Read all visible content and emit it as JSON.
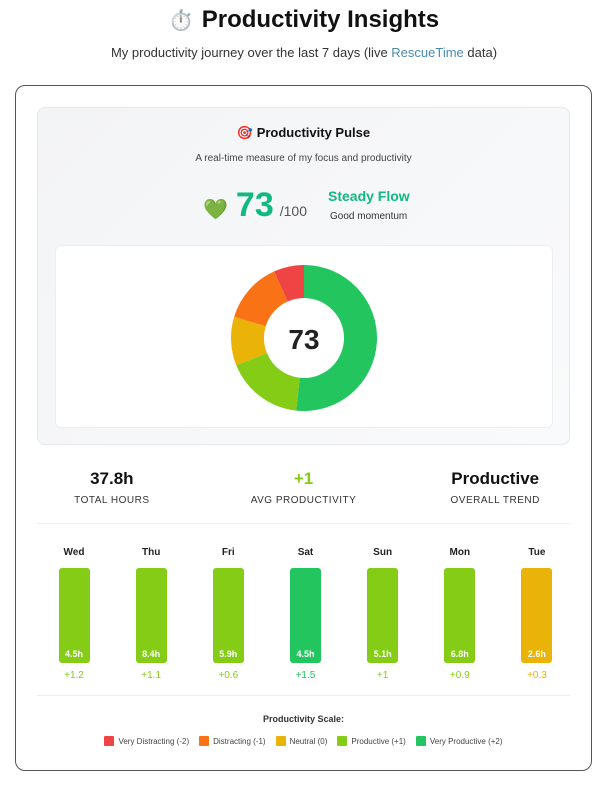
{
  "header": {
    "icon": "stopwatch-icon",
    "title": "Productivity Insights",
    "subtitle_pre": "My productivity journey over the last 7 days (live ",
    "subtitle_link": "RescueTime",
    "subtitle_post": " data)"
  },
  "pulse": {
    "title": "Productivity Pulse",
    "description": "A real-time measure of my focus and productivity",
    "score": "73",
    "max": "/100",
    "level": "Steady Flow",
    "level_sub": "Good momentum",
    "donut_center": "73",
    "segments": [
      {
        "name": "Very Productive",
        "pct": 51.7,
        "color": "#22c55e"
      },
      {
        "name": "Productive",
        "pct": 17.2,
        "color": "#84cc16"
      },
      {
        "name": "Neutral",
        "pct": 10.8,
        "color": "#eab308"
      },
      {
        "name": "Distracting",
        "pct": 13.6,
        "color": "#f97316"
      },
      {
        "name": "Very Distracting",
        "pct": 6.7,
        "color": "#ef4444"
      }
    ]
  },
  "stats": [
    {
      "value": "37.8h",
      "label": "TOTAL HOURS",
      "color": "#111111"
    },
    {
      "value": "+1",
      "label": "AVG PRODUCTIVITY",
      "color": "#84cc16"
    },
    {
      "value": "Productive",
      "label": "OVERALL TREND",
      "color": "#111111"
    }
  ],
  "days": [
    {
      "day": "Wed",
      "hours": "4.5h",
      "score": "+1.2",
      "color": "#84cc16"
    },
    {
      "day": "Thu",
      "hours": "8.4h",
      "score": "+1.1",
      "color": "#84cc16"
    },
    {
      "day": "Fri",
      "hours": "5.9h",
      "score": "+0.6",
      "color": "#84cc16"
    },
    {
      "day": "Sat",
      "hours": "4.5h",
      "score": "+1.5",
      "color": "#22c55e"
    },
    {
      "day": "Sun",
      "hours": "5.1h",
      "score": "+1",
      "color": "#84cc16"
    },
    {
      "day": "Mon",
      "hours": "6.8h",
      "score": "+0.9",
      "color": "#84cc16"
    },
    {
      "day": "Tue",
      "hours": "2.6h",
      "score": "+0.3",
      "color": "#eab308"
    }
  ],
  "scale": {
    "title": "Productivity Scale:",
    "items": [
      {
        "label": "Very Distracting (-2)",
        "color": "#ef4444"
      },
      {
        "label": "Distracting (-1)",
        "color": "#f97316"
      },
      {
        "label": "Neutral (0)",
        "color": "#eab308"
      },
      {
        "label": "Productive (+1)",
        "color": "#84cc16"
      },
      {
        "label": "Very Productive (+2)",
        "color": "#22c55e"
      }
    ]
  }
}
